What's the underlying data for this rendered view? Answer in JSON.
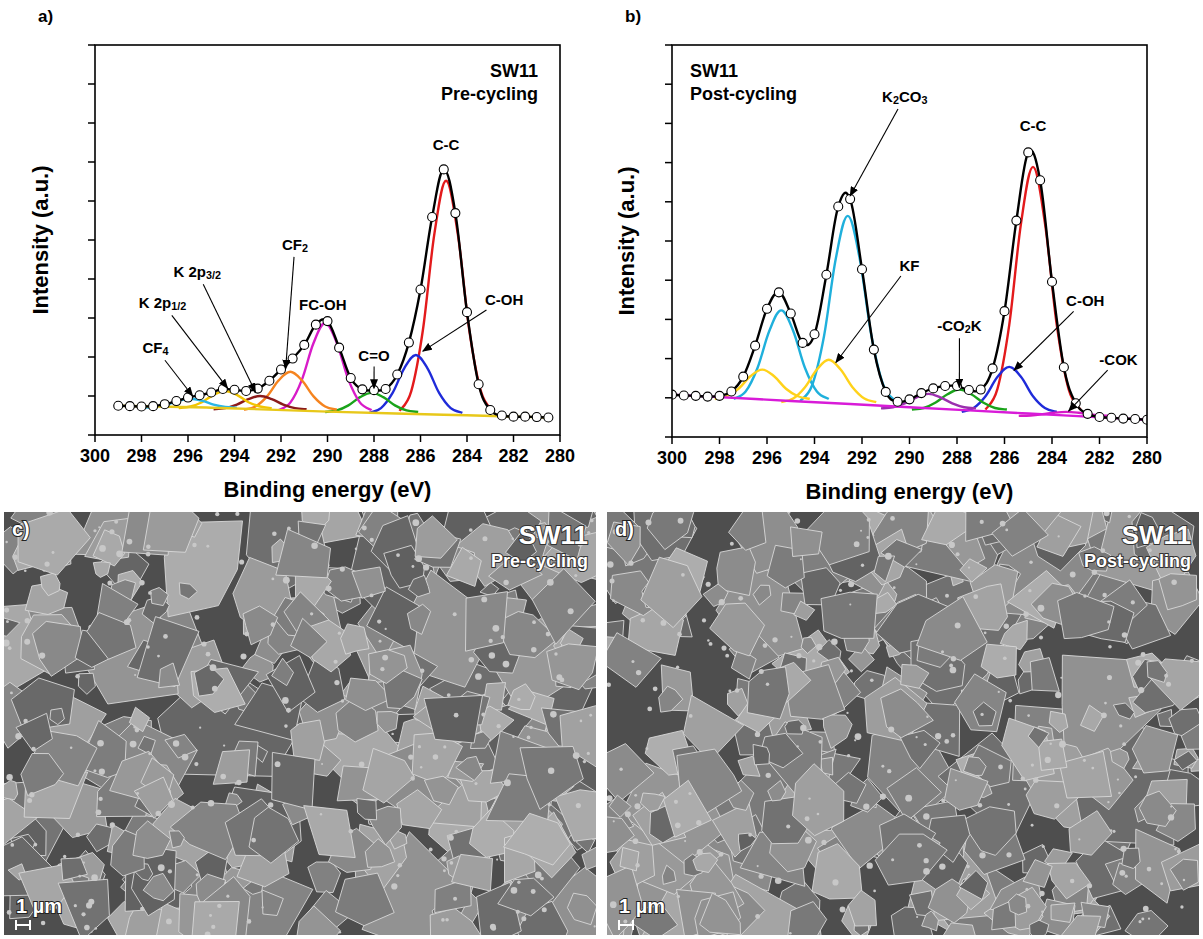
{
  "chart_data": [
    {
      "type": "line",
      "panel_label": "a)",
      "title": "SW11",
      "subtitle": "Pre-cycling",
      "x_label": "Binding energy (eV)",
      "y_label": "Intensity (a.u.)",
      "xlim": [
        300,
        280
      ],
      "xticks": [
        300,
        298,
        296,
        294,
        292,
        290,
        288,
        286,
        284,
        282,
        280
      ],
      "ylim": [
        0,
        100
      ],
      "yticks": [
        0,
        10,
        20,
        30,
        40,
        50,
        60,
        70,
        80,
        90,
        100
      ],
      "tick_labels": "x",
      "grid": false,
      "series": [
        {
          "name": "C-C",
          "color": "#e31a1c",
          "line_style": "solid",
          "x": [
            282.9,
            283.4,
            283.9,
            284.4,
            284.9,
            285.4,
            285.9,
            286.4,
            286.9
          ],
          "values": [
            6.2,
            11.2,
            26.8,
            51.7,
            65.2,
            51.7,
            26.8,
            11.2,
            6.2
          ]
        },
        {
          "name": "C-OH",
          "color": "#1f2bd9",
          "line_style": "solid",
          "x": [
            284.2,
            284.7,
            285.2,
            285.7,
            286.2,
            286.7,
            287.2,
            287.7,
            288.2
          ],
          "values": [
            5.7,
            6.9,
            10.8,
            17.1,
            20.5,
            17.1,
            10.8,
            6.9,
            5.7
          ]
        },
        {
          "name": "C=O",
          "color": "#1aa31a",
          "line_style": "solid",
          "x": [
            286.1,
            286.6,
            287.1,
            287.6,
            288.1,
            288.6,
            289.1,
            289.6,
            290.1
          ],
          "values": [
            5.9,
            6.3,
            7.6,
            9.7,
            10.8,
            9.7,
            7.6,
            6.3,
            5.9
          ]
        },
        {
          "name": "FC-OH",
          "color": "#d81bc8",
          "line_style": "solid",
          "x": [
            288.1,
            288.6,
            289.1,
            289.6,
            290.1,
            290.6,
            291.1,
            291.6,
            292.1
          ],
          "values": [
            6.4,
            8.3,
            14.2,
            23.6,
            28.7,
            23.6,
            14.2,
            8.3,
            6.4
          ]
        },
        {
          "name": "CF2",
          "color": "#f5841f",
          "line_style": "solid",
          "x": [
            289.6,
            290.1,
            290.6,
            291.1,
            291.6,
            292.1,
            292.6,
            293.1,
            293.6
          ],
          "values": [
            6.5,
            7.3,
            9.9,
            14.0,
            16.2,
            14.0,
            9.9,
            7.3,
            6.5
          ]
        },
        {
          "name": "K 2p3/2",
          "color": "#8b1a1a",
          "line_style": "solid",
          "x": [
            290.9,
            291.4,
            291.9,
            292.4,
            292.9,
            293.4,
            293.9,
            294.4,
            294.9
          ],
          "values": [
            6.6,
            6.9,
            7.8,
            9.2,
            10.0,
            9.2,
            7.8,
            6.9,
            6.6
          ]
        },
        {
          "name": "K 2p1/2",
          "color": "#f2c500",
          "line_style": "solid",
          "x": [
            292.4,
            292.9,
            293.4,
            293.9,
            294.4,
            294.9,
            295.4,
            295.9,
            296.4
          ],
          "values": [
            6.9,
            7.3,
            8.4,
            10.3,
            11.3,
            10.3,
            8.4,
            7.3,
            6.9
          ]
        },
        {
          "name": "CF4",
          "color": "#29b6e6",
          "line_style": "solid",
          "x": [
            293.9,
            294.4,
            294.9,
            295.4,
            295.9,
            296.4,
            296.9,
            297.4,
            297.9
          ],
          "values": [
            7.0,
            7.2,
            7.8,
            8.8,
            9.3,
            8.8,
            7.8,
            7.2,
            7.0
          ]
        },
        {
          "color": "#e8c81a",
          "line_style": "solid",
          "x": [
            299,
            295,
            290,
            285,
            280.5
          ],
          "values": [
            7.5,
            7.0,
            6.0,
            5.2,
            4.5
          ]
        },
        {
          "color": "#000000",
          "line_style": "solid",
          "marker": "open-circle",
          "x": [
            299,
            298.5,
            298,
            297.5,
            297,
            296.5,
            296,
            295.5,
            295,
            294.5,
            294,
            293.5,
            293,
            292.5,
            292,
            291.5,
            291,
            290.5,
            290,
            289.5,
            289,
            288.5,
            288,
            287.5,
            287,
            286.5,
            286,
            285.5,
            285,
            284.5,
            284,
            283.5,
            283,
            282.5,
            282,
            281.5,
            281,
            280.5
          ],
          "values": [
            7.5,
            7.4,
            7.3,
            7.4,
            7.9,
            8.7,
            9.6,
            10.2,
            10.9,
            11.8,
            11.6,
            11.3,
            11.9,
            13.9,
            16.8,
            19.6,
            23.1,
            28.3,
            29.2,
            22.4,
            14.6,
            11.7,
            11.5,
            11.8,
            15.5,
            23.7,
            37.3,
            55.9,
            68.1,
            56.9,
            31.5,
            13.0,
            6.4,
            5.0,
            4.7,
            4.7,
            4.6,
            4.5
          ]
        }
      ],
      "annotations": [
        {
          "series": 0,
          "text_x": 284.9,
          "text_y": 74.5
        },
        {
          "series": 1,
          "text_x": 282.4,
          "text_y": 35,
          "x": 285.9,
          "y": 21.5
        },
        {
          "series": 2,
          "text_x": 288.0,
          "text_y": 20.5,
          "x": 288.0,
          "y": 12
        },
        {
          "series": 3,
          "text_x": 290.2,
          "text_y": 33.5
        },
        {
          "series": 4,
          "text_x": 291.4,
          "text_y": 49,
          "x": 291.8,
          "y": 17
        },
        {
          "series": 5,
          "text_x": 295.6,
          "text_y": 42,
          "x": 293.1,
          "y": 11
        },
        {
          "series": 6,
          "text_x": 297.1,
          "text_y": 34,
          "x": 294.3,
          "y": 12
        },
        {
          "series": 7,
          "text_x": 297.4,
          "text_y": 22.5,
          "x": 295.8,
          "y": 10
        }
      ]
    },
    {
      "type": "line",
      "panel_label": "b)",
      "title": "SW11",
      "subtitle": "Post-cycling",
      "x_label": "Binding energy (eV)",
      "y_label": "Intensity (a.u.)",
      "xlim": [
        300,
        280
      ],
      "xticks": [
        300,
        298,
        296,
        294,
        292,
        290,
        288,
        286,
        284,
        282,
        280
      ],
      "ylim": [
        0,
        100
      ],
      "yticks": [
        0,
        10,
        20,
        30,
        40,
        50,
        60,
        70,
        80,
        90,
        100
      ],
      "tick_labels": "x",
      "grid": false,
      "series": [
        {
          "name": "C-C",
          "color": "#e31a1c",
          "line_style": "solid",
          "x": [
            282.8,
            283.3,
            283.8,
            284.3,
            284.8,
            285.3,
            285.8,
            286.3,
            286.8
          ],
          "values": [
            7.0,
            12.2,
            28.6,
            54.7,
            68.9,
            54.7,
            28.6,
            12.2,
            7.0
          ]
        },
        {
          "name": "C-OH",
          "color": "#1f2bd9",
          "line_style": "solid",
          "x": [
            283.8,
            284.3,
            284.8,
            285.3,
            285.8,
            286.3,
            286.8,
            287.3,
            287.8
          ],
          "values": [
            6.4,
            7.4,
            10.4,
            15.3,
            17.9,
            15.3,
            10.4,
            7.4,
            6.4
          ]
        },
        {
          "name": "-COK",
          "color": "#d81bc8",
          "line_style": "solid",
          "x": [
            281.4,
            281.9,
            282.4,
            282.9,
            283.4,
            283.9,
            284.4,
            284.9,
            285.4
          ],
          "values": [
            5.4,
            5.5,
            5.8,
            6.2,
            6.4,
            6.2,
            5.8,
            5.5,
            5.4
          ]
        },
        {
          "name": "-CO2K",
          "color": "#1aa31a",
          "line_style": "solid",
          "x": [
            285.9,
            286.4,
            286.9,
            287.4,
            287.9,
            288.4,
            288.9,
            289.4,
            289.9
          ],
          "values": [
            7.0,
            7.4,
            8.8,
            10.9,
            12.1,
            10.9,
            8.8,
            7.4,
            7.0
          ]
        },
        {
          "color": "#9b2fae",
          "line_style": "solid",
          "x": [
            287.2,
            287.7,
            288.2,
            288.7,
            289.2,
            289.7,
            290.2,
            290.7,
            291.2
          ],
          "values": [
            7.3,
            7.6,
            8.6,
            10.1,
            11.0,
            10.1,
            8.6,
            7.6,
            7.3
          ]
        },
        {
          "name": "K2CO3",
          "color": "#1fb0dc",
          "line_style": "solid",
          "x": [
            290.6,
            291.1,
            291.6,
            292.1,
            292.6,
            293.1,
            293.6,
            294.1,
            294.6
          ],
          "values": [
            9.2,
            13.2,
            25.7,
            45.6,
            56.4,
            45.6,
            25.7,
            13.2,
            9.2
          ]
        },
        {
          "color": "#1fb0dc",
          "line_style": "solid",
          "x": [
            293.4,
            293.9,
            294.4,
            294.9,
            295.4,
            295.9,
            296.4,
            296.9,
            297.4
          ],
          "values": [
            9.7,
            11.6,
            17.6,
            27.1,
            32.3,
            27.1,
            17.6,
            11.6,
            9.7
          ]
        },
        {
          "name": "KF",
          "color": "#ffd21a",
          "line_style": "solid",
          "x": [
            291.4,
            291.9,
            292.4,
            292.9,
            293.4,
            293.9,
            294.4,
            294.9,
            295.4
          ],
          "values": [
            8.9,
            9.8,
            12.7,
            17.2,
            19.7,
            17.2,
            12.7,
            9.8,
            8.9
          ]
        },
        {
          "color": "#ffd21a",
          "line_style": "solid",
          "x": [
            294.2,
            294.7,
            295.2,
            295.7,
            296.2,
            296.7,
            297.2,
            297.7,
            298.2
          ],
          "values": [
            9.7,
            10.4,
            12.3,
            15.5,
            17.2,
            15.5,
            12.3,
            10.4,
            9.7
          ]
        },
        {
          "color": "#d81bd8",
          "line_style": "solid",
          "x": [
            300,
            295,
            290,
            285,
            280
          ],
          "values": [
            10.8,
            9.2,
            7.6,
            6.0,
            4.4
          ]
        },
        {
          "color": "#000000",
          "line_style": "solid",
          "marker": "open-circle",
          "x": [
            300,
            299.5,
            299,
            298.5,
            298,
            297.5,
            297,
            296.5,
            296,
            295.5,
            295,
            294.5,
            294,
            293.5,
            293,
            292.5,
            292,
            291.5,
            291,
            290.5,
            290,
            289.5,
            289,
            288.5,
            288,
            287.5,
            287,
            286.5,
            286,
            285.5,
            285,
            284.5,
            284,
            283.5,
            283,
            282.5,
            282,
            281.5,
            281,
            280.5,
            280
          ],
          "values": [
            10.8,
            10.6,
            10.5,
            10.3,
            10.5,
            11.6,
            15.4,
            23.3,
            32.7,
            36.9,
            31.5,
            24.0,
            26.2,
            41.4,
            58.8,
            60.7,
            42.8,
            22.3,
            11.5,
            9.0,
            9.6,
            11.2,
            12.4,
            13.0,
            13.0,
            12.0,
            12.1,
            17.5,
            32.1,
            55.2,
            72.6,
            65.5,
            39.6,
            17.8,
            8.6,
            5.9,
            5.1,
            4.9,
            4.7,
            4.6,
            4.4
          ]
        }
      ],
      "annotations": [
        {
          "series": 0,
          "text_x": 284.8,
          "text_y": 79.5
        },
        {
          "series": 1,
          "text_x": 282.6,
          "text_y": 35,
          "x": 285.6,
          "y": 17
        },
        {
          "series": 2,
          "text_x": 281.2,
          "text_y": 20,
          "x": 283.3,
          "y": 6.6
        },
        {
          "series": 3,
          "text_x": 287.9,
          "text_y": 28.5,
          "x": 287.9,
          "y": 12.6
        },
        {
          "series": 5,
          "text_x": 290.2,
          "text_y": 87,
          "x": 292.5,
          "y": 61.5
        },
        {
          "series": 7,
          "text_x": 290.0,
          "text_y": 44,
          "x": 293.1,
          "y": 19
        }
      ]
    }
  ],
  "images": [
    {
      "label": "c)",
      "title": "SW11",
      "subtitle": "Pre-cycling",
      "scale_bar": "1 µm"
    },
    {
      "label": "d)",
      "title": "SW11",
      "subtitle": "Post-cycling",
      "scale_bar": "1 µm"
    }
  ]
}
